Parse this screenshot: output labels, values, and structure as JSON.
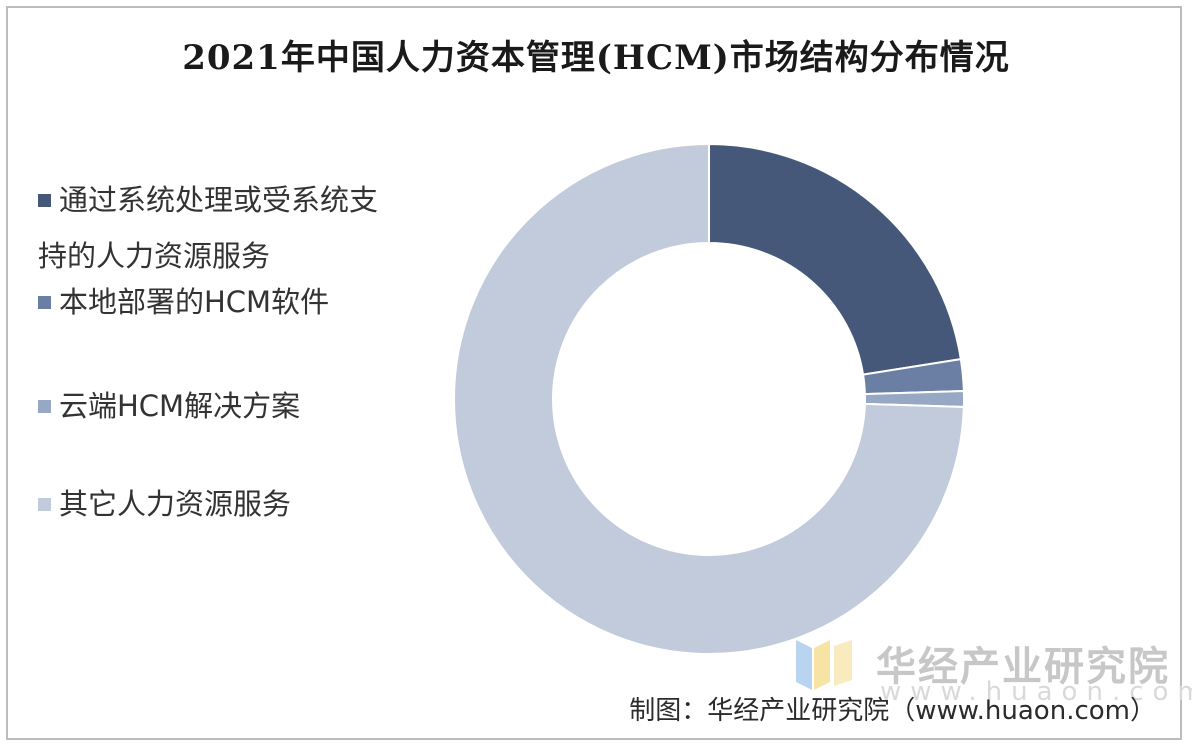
{
  "chart_data": {
    "type": "pie",
    "title": "2021年中国人力资本管理(HCM)市场结构分布情况",
    "donut": true,
    "legend_position": "left",
    "series": [
      {
        "name": "通过系统处理或受系统支持的人力资源服务",
        "value": 22.5,
        "color": "#46587a"
      },
      {
        "name": "本地部署的HCM软件",
        "value": 2.0,
        "color": "#6a7fa3"
      },
      {
        "name": "云端HCM解决方案",
        "value": 1.0,
        "color": "#97a8c5"
      },
      {
        "name": "其它人力资源服务",
        "value": 74.5,
        "color": "#c2cbdc"
      }
    ]
  },
  "legend": {
    "item1_line1": "通过系统处理或受系统支",
    "item1_line2": "持的人力资源服务",
    "item2": "本地部署的HCM软件",
    "item3": "云端HCM解决方案",
    "item4": "其它人力资源服务"
  },
  "watermark": {
    "name": "华经产业研究院",
    "url": "www.huaon.com"
  },
  "source": "制图：华经产业研究院（www.huaon.com）"
}
